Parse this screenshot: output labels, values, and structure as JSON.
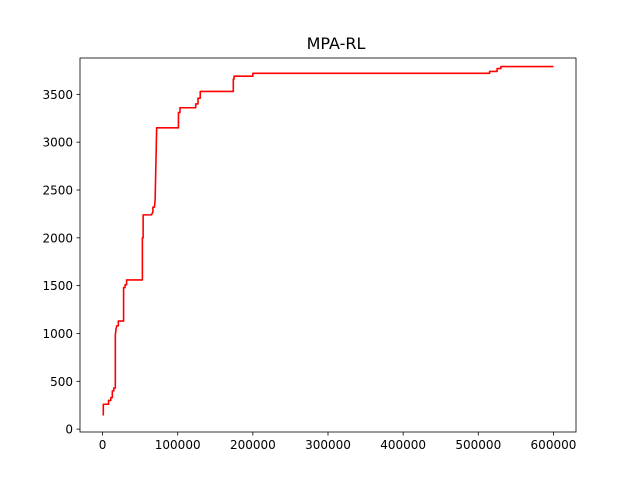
{
  "chart_data": {
    "type": "line",
    "title": "MPA-RL",
    "xlabel": "",
    "ylabel": "",
    "xlim": [
      -30000,
      630000
    ],
    "ylim": [
      -30,
      3880
    ],
    "xticks": [
      0,
      100000,
      200000,
      300000,
      400000,
      500000,
      600000
    ],
    "yticks": [
      0,
      500,
      1000,
      1500,
      2000,
      2500,
      3000,
      3500
    ],
    "grid": false,
    "legend": "none",
    "series": [
      {
        "color": "#ff0000",
        "x": [
          0,
          1000,
          1000,
          8000,
          8000,
          11000,
          11000,
          13000,
          13000,
          15000,
          15000,
          17000,
          17000,
          18000,
          19000,
          21000,
          21000,
          27000,
          28000,
          28000,
          30000,
          30000,
          32000,
          32000,
          53000,
          53000,
          54000,
          54000,
          65000,
          67000,
          67000,
          69000,
          70000,
          70000,
          72000,
          72000,
          101000,
          101000,
          103000,
          103000,
          124000,
          124000,
          127000,
          127000,
          130000,
          130000,
          174000,
          174000,
          175000,
          175000,
          200000,
          200000,
          500000,
          515000,
          515000,
          525000,
          525000,
          530000,
          530000,
          600000
        ],
        "y": [
          150,
          150,
          260,
          260,
          300,
          300,
          330,
          330,
          400,
          400,
          430,
          430,
          980,
          1050,
          1080,
          1080,
          1130,
          1130,
          1130,
          1480,
          1480,
          1510,
          1510,
          1560,
          1560,
          2000,
          2000,
          2240,
          2240,
          2270,
          2320,
          2320,
          2400,
          2400,
          3150,
          3150,
          3150,
          3310,
          3310,
          3360,
          3360,
          3400,
          3400,
          3460,
          3460,
          3530,
          3530,
          3660,
          3660,
          3690,
          3690,
          3720,
          3720,
          3720,
          3740,
          3740,
          3770,
          3770,
          3790,
          3790
        ]
      }
    ]
  }
}
